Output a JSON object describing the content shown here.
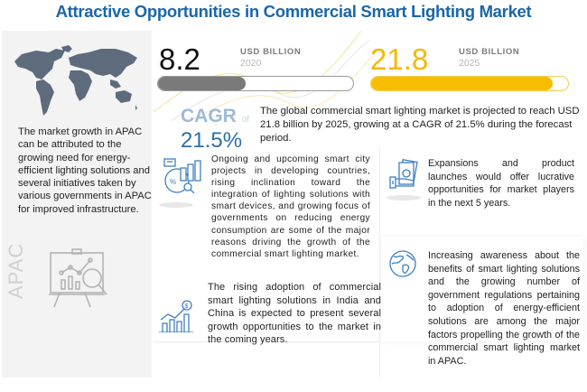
{
  "title": "Attractive Opportunities in Commercial Smart Lighting Market",
  "left_panel": {
    "map_icon": "world-map-icon",
    "text": "The market growth in APAC can be attributed to the growing need for energy-efficient lighting solutions and several initiatives taken by various governments in APAC for improved infrastructure.",
    "region_label": "APAC",
    "analysis_icon": "presentation-analytics-icon"
  },
  "stats": {
    "value_2020": "8.2",
    "unit_2020": "USD BILLION",
    "year_2020": "2020",
    "bar_fill_2020": 0.45,
    "value_2025": "21.8",
    "unit_2025": "USD BILLION",
    "year_2025": "2025",
    "bar_fill_2025": 0.92
  },
  "cagr": {
    "label": "CAGR",
    "of": "of",
    "value": "21.5%"
  },
  "summary": "The global commercial smart lighting market is projected to reach USD 21.8 billion by 2025, growing at a CAGR of 21.5% during the forecast period.",
  "blocks": [
    {
      "icon": "analytics-percentage-icon",
      "text": "Ongoing and upcoming smart city projects in developing countries, rising inclination toward the integration of lighting solutions with smart devices, and growing focus of governments on reducing energy consumption are some of the major reasons driving the growth of the commercial smart lighting market."
    },
    {
      "icon": "growth-chart-dollar-icon",
      "text": "The rising adoption of commercial smart lighting solutions in India and China is expected to present several growth opportunities to the market in the coming years."
    },
    {
      "icon": "money-hand-icon",
      "text": "Expansions and product launches would offer lucrative opportunities for market players in the next 5 years."
    },
    {
      "icon": "globe-icon",
      "text": "Increasing awareness about the benefits of smart lighting solutions and the growing number of government regulations pertaining to adoption of energy-efficient solutions are among the major factors propelling the growth of the commercial smart lighting market in APAC."
    }
  ],
  "colors": {
    "title": "#1a66a8",
    "accent_yellow": "#f8bd00",
    "bar_gray": "#7a7a7a",
    "cagr_blue": "#2d6fa8",
    "icon_blue": "#3d7fc1"
  }
}
